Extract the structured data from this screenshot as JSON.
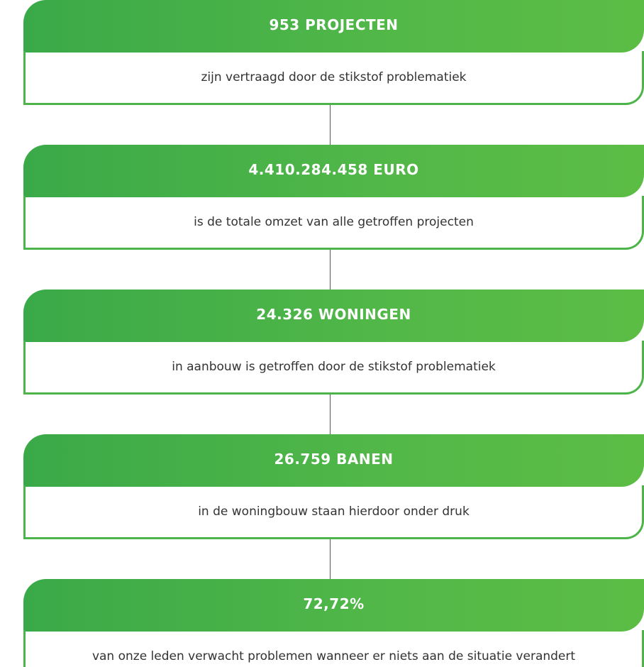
{
  "items": [
    {
      "title": "953 PROJECTEN",
      "text": "zijn vertraagd door de stikstof problematiek"
    },
    {
      "title": "4.410.284.458 EURO",
      "text": "is de totale omzet van alle getroffen projecten"
    },
    {
      "title": "24.326 WONINGEN",
      "text": "in aanbouw is getroffen door de stikstof problematiek"
    },
    {
      "title": "26.759 BANEN",
      "text": "in de woningbouw staan hierdoor onder druk"
    },
    {
      "title": "72,72%",
      "text": "van onze leden verwacht problemen wanneer er niets aan de situatie verandert"
    }
  ]
}
